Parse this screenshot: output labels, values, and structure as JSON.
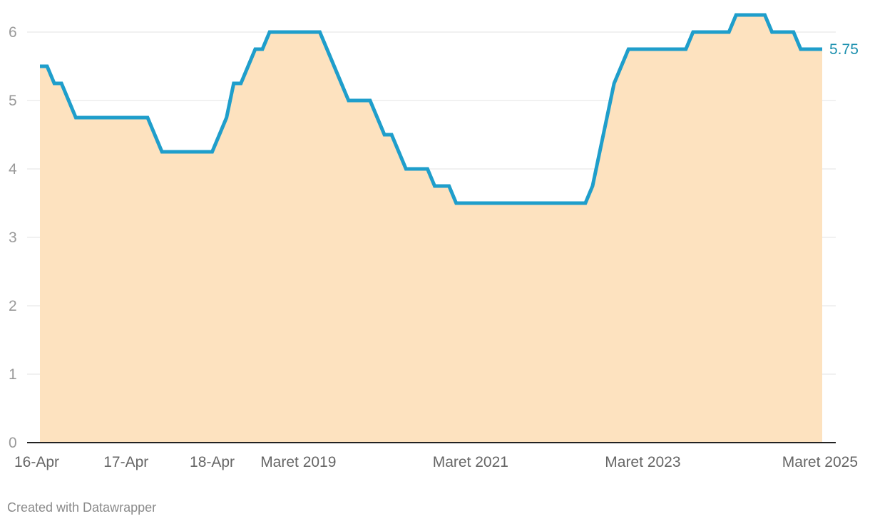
{
  "chart_data": {
    "type": "area",
    "title": "",
    "xlabel": "",
    "ylabel": "",
    "ylim": [
      0,
      6.5
    ],
    "y_ticks": [
      0,
      1,
      2,
      3,
      4,
      5,
      6
    ],
    "grid": "horizontal",
    "x_tick_labels": [
      "16-Apr",
      "17-Apr",
      "18-Apr",
      "Maret 2019",
      "Maret 2021",
      "Maret 2023",
      "Maret 2025"
    ],
    "x_tick_index": [
      0,
      12,
      24,
      36,
      60,
      84,
      108
    ],
    "series": [
      {
        "values": [
          5.5,
          5.5,
          5.25,
          5.25,
          5.0,
          4.75,
          4.75,
          4.75,
          4.75,
          4.75,
          4.75,
          4.75,
          4.75,
          4.75,
          4.75,
          4.75,
          4.5,
          4.25,
          4.25,
          4.25,
          4.25,
          4.25,
          4.25,
          4.25,
          4.25,
          4.5,
          4.75,
          5.25,
          5.25,
          5.5,
          5.75,
          5.75,
          6.0,
          6.0,
          6.0,
          6.0,
          6.0,
          6.0,
          6.0,
          6.0,
          5.75,
          5.5,
          5.25,
          5.0,
          5.0,
          5.0,
          5.0,
          4.75,
          4.5,
          4.5,
          4.25,
          4.0,
          4.0,
          4.0,
          4.0,
          3.75,
          3.75,
          3.75,
          3.5,
          3.5,
          3.5,
          3.5,
          3.5,
          3.5,
          3.5,
          3.5,
          3.5,
          3.5,
          3.5,
          3.5,
          3.5,
          3.5,
          3.5,
          3.5,
          3.5,
          3.5,
          3.5,
          3.75,
          4.25,
          4.75,
          5.25,
          5.5,
          5.75,
          5.75,
          5.75,
          5.75,
          5.75,
          5.75,
          5.75,
          5.75,
          5.75,
          6.0,
          6.0,
          6.0,
          6.0,
          6.0,
          6.0,
          6.25,
          6.25,
          6.25,
          6.25,
          6.25,
          6.0,
          6.0,
          6.0,
          6.0,
          5.75,
          5.75,
          5.75,
          5.75
        ]
      }
    ],
    "end_label": "5.75",
    "colors": {
      "line": "#1f9ecb",
      "fill": "#fde2bf",
      "end_label": "#1a8fae"
    }
  },
  "footer": {
    "credit": "Created with Datawrapper"
  }
}
